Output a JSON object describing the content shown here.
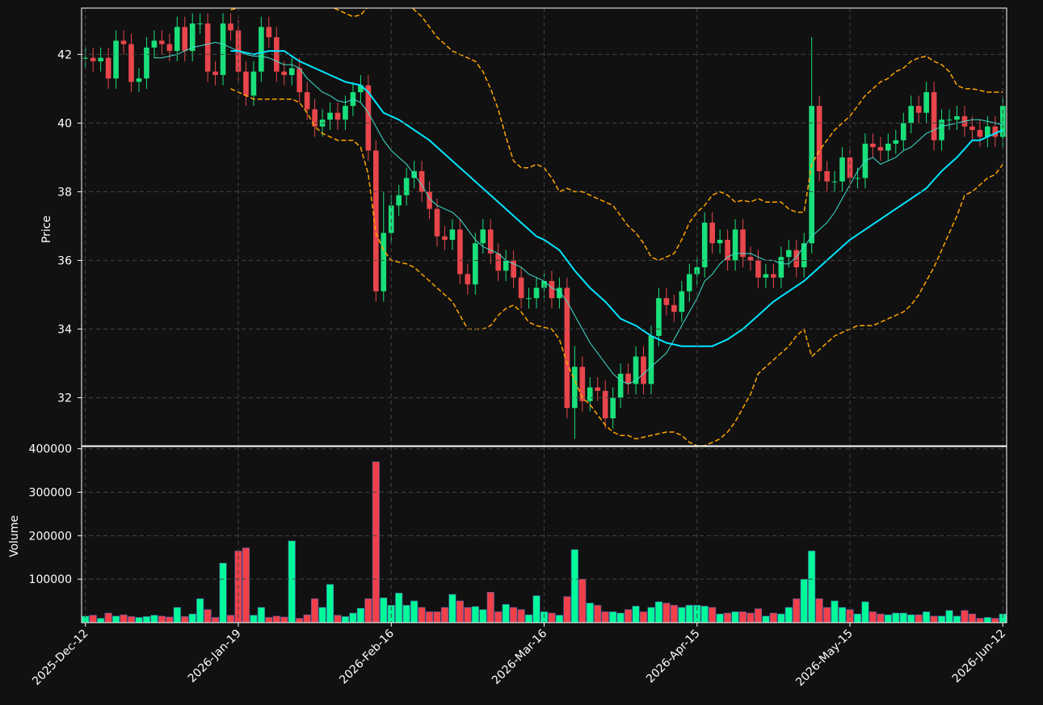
{
  "chart_data": {
    "type": "candlestick",
    "ylabel": "Price",
    "y2label": "Volume",
    "categories": [
      "2025-Dec-12",
      null,
      null,
      null,
      null,
      null,
      null,
      null,
      null,
      null,
      null,
      null,
      null,
      null,
      null,
      null,
      null,
      null,
      null,
      null,
      "2026-Jan-19",
      null,
      null,
      null,
      null,
      null,
      null,
      null,
      null,
      null,
      null,
      null,
      null,
      null,
      null,
      null,
      null,
      null,
      null,
      null,
      "2026-Feb-16",
      null,
      null,
      null,
      null,
      null,
      null,
      null,
      null,
      null,
      null,
      null,
      null,
      null,
      null,
      null,
      null,
      null,
      null,
      null,
      "2026-Mar-16",
      null,
      null,
      null,
      null,
      null,
      null,
      null,
      null,
      null,
      null,
      null,
      null,
      null,
      null,
      null,
      null,
      null,
      null,
      null,
      "2026-Apr-15",
      null,
      null,
      null,
      null,
      null,
      null,
      null,
      null,
      null,
      null,
      null,
      null,
      null,
      null,
      null,
      null,
      null,
      null,
      null,
      "2026-May-15",
      null,
      null,
      null,
      null,
      null,
      null,
      null,
      null,
      null,
      null,
      null,
      null,
      null,
      null,
      null,
      null,
      null,
      null,
      null,
      "2026-Jun-12"
    ],
    "open": [
      41.9,
      41.9,
      41.8,
      41.9,
      41.3,
      42.4,
      42.3,
      41.2,
      41.3,
      42.2,
      42.4,
      42.3,
      42.1,
      42.8,
      42.1,
      42.9,
      42.9,
      41.5,
      41.4,
      42.9,
      42.7,
      41.5,
      40.8,
      41.5,
      42.8,
      42.5,
      41.5,
      41.4,
      41.6,
      40.9,
      40.4,
      39.9,
      40.1,
      40.3,
      40.1,
      40.5,
      40.9,
      41.1,
      39.2,
      35.1,
      36.8,
      37.6,
      37.9,
      38.4,
      38.6,
      38.0,
      37.5,
      36.7,
      36.6,
      36.9,
      35.6,
      35.3,
      36.5,
      36.9,
      36.2,
      35.7,
      36.0,
      35.5,
      34.9,
      34.9,
      35.2,
      35.4,
      34.9,
      35.2,
      31.7,
      32.9,
      31.9,
      32.3,
      32.2,
      31.4,
      32.0,
      32.7,
      32.4,
      33.2,
      32.4,
      33.8,
      34.9,
      34.7,
      34.5,
      35.1,
      35.6,
      35.8,
      37.1,
      36.5,
      36.6,
      36.0,
      36.9,
      36.1,
      36.0,
      35.5,
      35.6,
      35.5,
      36.1,
      36.3,
      35.8,
      36.5,
      40.5,
      38.6,
      38.3,
      38.3,
      39.0,
      38.4,
      38.4,
      39.4,
      39.3,
      39.2,
      39.4,
      39.5,
      40.0,
      40.5,
      40.3,
      40.9,
      39.5,
      40.1,
      40.1,
      40.2,
      39.9,
      39.8,
      39.6,
      39.9,
      39.6
    ],
    "high": [
      42.2,
      42.2,
      42.2,
      42.2,
      42.7,
      42.7,
      42.6,
      41.6,
      42.5,
      42.7,
      42.7,
      42.6,
      43.1,
      43.1,
      43.2,
      43.2,
      43.2,
      41.8,
      43.2,
      43.2,
      43.0,
      41.8,
      41.8,
      43.1,
      43.1,
      42.8,
      41.8,
      41.9,
      41.9,
      41.2,
      40.7,
      40.4,
      40.6,
      40.6,
      40.8,
      41.2,
      41.4,
      41.4,
      39.5,
      38.0,
      37.9,
      38.2,
      38.7,
      38.9,
      38.9,
      38.3,
      37.8,
      37.0,
      37.2,
      37.2,
      35.9,
      36.8,
      37.2,
      37.2,
      36.5,
      36.3,
      36.3,
      35.8,
      35.2,
      35.5,
      35.7,
      35.7,
      35.5,
      35.5,
      33.5,
      33.2,
      32.6,
      32.6,
      32.5,
      32.3,
      33.0,
      33.0,
      33.5,
      33.5,
      34.1,
      35.2,
      35.2,
      35.0,
      35.4,
      35.9,
      36.1,
      37.4,
      37.4,
      36.9,
      36.9,
      37.2,
      37.2,
      36.4,
      36.3,
      35.9,
      35.9,
      36.4,
      36.6,
      36.6,
      36.8,
      42.5,
      40.8,
      38.9,
      38.6,
      39.3,
      39.3,
      38.7,
      39.7,
      39.7,
      39.6,
      39.7,
      39.8,
      40.3,
      40.8,
      40.8,
      41.2,
      41.2,
      40.4,
      40.4,
      40.5,
      40.5,
      40.2,
      40.1,
      40.2,
      40.2,
      40.8
    ],
    "low": [
      41.6,
      41.5,
      41.5,
      41.0,
      41.0,
      42.0,
      40.9,
      40.9,
      41.0,
      41.9,
      42.0,
      41.8,
      41.8,
      41.8,
      41.8,
      42.6,
      41.2,
      41.1,
      41.1,
      42.4,
      41.2,
      40.5,
      40.5,
      41.2,
      42.2,
      41.2,
      41.1,
      41.1,
      40.6,
      40.1,
      39.6,
      39.6,
      39.8,
      39.8,
      39.8,
      40.2,
      40.6,
      38.9,
      34.8,
      34.8,
      36.5,
      37.3,
      37.6,
      38.1,
      37.7,
      37.2,
      36.4,
      36.3,
      36.3,
      35.3,
      35.0,
      35.0,
      36.2,
      35.9,
      35.4,
      35.4,
      35.2,
      34.6,
      34.6,
      34.6,
      34.9,
      34.6,
      34.6,
      31.4,
      30.8,
      31.6,
      31.6,
      31.9,
      31.1,
      31.1,
      31.7,
      32.1,
      32.1,
      32.1,
      32.1,
      33.5,
      34.4,
      34.2,
      34.2,
      34.8,
      35.3,
      35.5,
      36.2,
      36.2,
      35.7,
      35.7,
      35.8,
      35.7,
      35.2,
      35.2,
      35.2,
      35.2,
      35.8,
      35.5,
      35.5,
      36.2,
      38.3,
      38.0,
      38.0,
      38.0,
      38.1,
      38.1,
      38.1,
      39.0,
      38.9,
      38.9,
      39.1,
      39.2,
      39.7,
      40.0,
      40.0,
      39.2,
      39.2,
      39.8,
      39.8,
      39.6,
      39.5,
      39.3,
      39.3,
      39.3,
      39.3
    ],
    "close": [
      41.9,
      41.8,
      41.9,
      41.3,
      42.4,
      42.3,
      41.2,
      41.3,
      42.2,
      42.4,
      42.3,
      42.1,
      42.8,
      42.1,
      42.9,
      42.9,
      41.5,
      41.4,
      42.9,
      42.7,
      41.5,
      40.8,
      41.5,
      42.8,
      42.5,
      41.5,
      41.4,
      41.6,
      40.9,
      40.4,
      39.9,
      40.1,
      40.3,
      40.1,
      40.5,
      40.9,
      41.1,
      39.2,
      35.1,
      36.8,
      37.6,
      37.9,
      38.4,
      38.6,
      38.0,
      37.5,
      36.7,
      36.6,
      36.9,
      35.6,
      35.3,
      36.5,
      36.9,
      36.2,
      35.7,
      36.0,
      35.5,
      34.9,
      34.9,
      35.2,
      35.4,
      34.9,
      35.2,
      31.7,
      32.9,
      31.9,
      32.3,
      32.2,
      31.4,
      32.0,
      32.7,
      32.4,
      33.2,
      32.4,
      33.8,
      34.9,
      34.7,
      34.5,
      35.1,
      35.6,
      35.8,
      37.1,
      36.5,
      36.6,
      36.0,
      36.9,
      36.1,
      36.0,
      35.5,
      35.6,
      35.5,
      36.1,
      36.3,
      35.8,
      36.5,
      40.5,
      38.6,
      38.3,
      38.3,
      39.0,
      38.4,
      38.4,
      39.4,
      39.3,
      39.2,
      39.4,
      39.5,
      40.0,
      40.5,
      40.3,
      40.9,
      39.5,
      40.1,
      40.1,
      40.2,
      39.9,
      39.8,
      39.6,
      39.9,
      39.6,
      40.5
    ],
    "volume": [
      15000,
      17000,
      10000,
      22000,
      15000,
      18000,
      14000,
      12000,
      14000,
      17000,
      15000,
      13000,
      35000,
      14000,
      20000,
      55000,
      30000,
      12000,
      137000,
      17000,
      165000,
      172000,
      17000,
      35000,
      12000,
      15000,
      13000,
      188000,
      10000,
      18000,
      55000,
      35000,
      88000,
      17000,
      14000,
      22000,
      33000,
      55000,
      370000,
      57000,
      40000,
      68000,
      40000,
      50000,
      35000,
      25000,
      25000,
      35000,
      65000,
      50000,
      35000,
      37000,
      30000,
      70000,
      25000,
      42000,
      35000,
      30000,
      18000,
      62000,
      25000,
      22000,
      17000,
      60000,
      168000,
      100000,
      45000,
      40000,
      25000,
      25000,
      22000,
      30000,
      38000,
      25000,
      35000,
      48000,
      45000,
      40000,
      35000,
      40000,
      40000,
      38000,
      35000,
      20000,
      22000,
      25000,
      25000,
      22000,
      32000,
      15000,
      22000,
      20000,
      35000,
      55000,
      100000,
      165000,
      55000,
      35000,
      50000,
      35000,
      30000,
      20000,
      48000,
      25000,
      20000,
      18000,
      22000,
      22000,
      18000,
      18000,
      25000,
      15000,
      15000,
      28000,
      15000,
      28000,
      20000,
      10000,
      12000,
      10000,
      20000
    ],
    "up_color": "#19e07a",
    "down_color": "#e8464c",
    "volume_up_color": "#00fa9a",
    "volume_down_color": "#f0404a",
    "overlays": [
      {
        "color": "#40e0d0",
        "linewidth": 1,
        "linestyle": "solid",
        "values": [
          null,
          null,
          null,
          null,
          null,
          null,
          null,
          null,
          null,
          41.9,
          41.9,
          41.95,
          42.0,
          42.1,
          42.2,
          42.25,
          42.3,
          42.35,
          42.3,
          42.2,
          42.1,
          42.0,
          41.95,
          41.95,
          41.9,
          41.8,
          41.7,
          41.7,
          41.6,
          41.3,
          41.1,
          40.9,
          40.8,
          40.65,
          40.6,
          40.7,
          40.6,
          40.3,
          39.9,
          39.5,
          39.2,
          39.0,
          38.8,
          38.5,
          38.2,
          37.8,
          37.6,
          37.5,
          37.4,
          37.2,
          36.9,
          36.6,
          36.4,
          36.3,
          36.2,
          36.0,
          35.9,
          35.8,
          35.6,
          35.5,
          35.4,
          35.2,
          35.1,
          34.8,
          34.4,
          34.0,
          33.6,
          33.3,
          33.0,
          32.7,
          32.5,
          32.4,
          32.5,
          32.7,
          32.9,
          33.1,
          33.3,
          33.7,
          34.1,
          34.5,
          34.9,
          35.4,
          35.6,
          35.9,
          36.1,
          36.2,
          36.2,
          36.2,
          36.1,
          36.0,
          36.0,
          35.9,
          35.9,
          36.1,
          36.4,
          36.7,
          36.9,
          37.1,
          37.4,
          37.8,
          38.2,
          38.6,
          38.9,
          39.0,
          38.8,
          38.9,
          39.0,
          39.2,
          39.3,
          39.5,
          39.7,
          39.8,
          39.9,
          39.95,
          40.0,
          40.05,
          40.1,
          40.1,
          40.05,
          40.0,
          39.95
        ]
      },
      {
        "color": "#00e5ff",
        "linewidth": 2,
        "linestyle": "solid",
        "values": [
          null,
          null,
          null,
          null,
          null,
          null,
          null,
          null,
          null,
          null,
          null,
          null,
          null,
          null,
          null,
          null,
          null,
          null,
          null,
          42.1,
          42.1,
          42.05,
          42.0,
          42.05,
          42.1,
          42.1,
          42.1,
          41.95,
          41.8,
          41.7,
          41.6,
          41.5,
          41.4,
          41.3,
          41.2,
          41.15,
          41.1,
          40.9,
          40.6,
          40.3,
          40.2,
          40.1,
          39.95,
          39.8,
          39.65,
          39.5,
          39.3,
          39.1,
          38.9,
          38.7,
          38.5,
          38.3,
          38.1,
          37.9,
          37.7,
          37.5,
          37.3,
          37.1,
          36.9,
          36.7,
          36.6,
          36.45,
          36.3,
          36.0,
          35.7,
          35.45,
          35.2,
          35.0,
          34.8,
          34.55,
          34.3,
          34.2,
          34.1,
          33.95,
          33.8,
          33.7,
          33.6,
          33.55,
          33.5,
          33.5,
          33.5,
          33.5,
          33.5,
          33.6,
          33.7,
          33.85,
          34.0,
          34.2,
          34.4,
          34.6,
          34.8,
          34.95,
          35.1,
          35.25,
          35.4,
          35.6,
          35.8,
          36.0,
          36.2,
          36.4,
          36.6,
          36.75,
          36.9,
          37.05,
          37.2,
          37.35,
          37.5,
          37.65,
          37.8,
          37.95,
          38.1,
          38.35,
          38.6,
          38.8,
          39.0,
          39.25,
          39.5,
          39.5,
          39.6,
          39.7,
          39.8
        ]
      },
      {
        "color": "#ffa500",
        "linewidth": 1.5,
        "linestyle": "dashed",
        "values": [
          null,
          null,
          null,
          null,
          null,
          null,
          null,
          null,
          null,
          null,
          null,
          null,
          null,
          null,
          null,
          null,
          null,
          null,
          null,
          43.3,
          43.35,
          43.4,
          43.5,
          43.6,
          43.6,
          43.6,
          43.6,
          43.7,
          43.7,
          43.6,
          43.5,
          43.5,
          43.4,
          43.3,
          43.2,
          43.1,
          43.15,
          43.4,
          43.8,
          44.3,
          44.5,
          44.3,
          43.6,
          43.3,
          43.1,
          42.8,
          42.5,
          42.3,
          42.1,
          42.0,
          41.9,
          41.8,
          41.5,
          41.0,
          40.4,
          39.6,
          38.9,
          38.7,
          38.7,
          38.8,
          38.7,
          38.4,
          38.0,
          38.1,
          38.0,
          38.0,
          37.9,
          37.8,
          37.7,
          37.6,
          37.3,
          37.0,
          36.8,
          36.5,
          36.1,
          36.0,
          36.1,
          36.2,
          36.6,
          37.1,
          37.4,
          37.6,
          37.9,
          38.0,
          37.9,
          37.7,
          37.75,
          37.7,
          37.8,
          37.7,
          37.7,
          37.7,
          37.5,
          37.4,
          37.4,
          38.8,
          39.2,
          39.5,
          39.8,
          40.0,
          40.2,
          40.5,
          40.8,
          41.0,
          41.2,
          41.3,
          41.5,
          41.6,
          41.8,
          41.9,
          41.95,
          41.8,
          41.7,
          41.5,
          41.1,
          41.0,
          41.0,
          40.95,
          40.9,
          40.9,
          40.9
        ]
      },
      {
        "color": "#ffa500",
        "linewidth": 1.5,
        "linestyle": "dashed",
        "values": [
          null,
          null,
          null,
          null,
          null,
          null,
          null,
          null,
          null,
          null,
          null,
          null,
          null,
          null,
          null,
          null,
          null,
          null,
          null,
          41.0,
          40.9,
          40.8,
          40.7,
          40.7,
          40.7,
          40.7,
          40.7,
          40.7,
          40.6,
          40.3,
          39.9,
          39.7,
          39.6,
          39.5,
          39.5,
          39.5,
          39.3,
          38.5,
          36.8,
          36.3,
          36.0,
          35.95,
          35.9,
          35.8,
          35.6,
          35.4,
          35.2,
          35.0,
          34.8,
          34.4,
          34.0,
          34.0,
          34.0,
          34.1,
          34.4,
          34.6,
          34.7,
          34.5,
          34.2,
          34.1,
          34.05,
          34.0,
          33.7,
          33.0,
          32.5,
          32.0,
          31.8,
          31.5,
          31.2,
          31.0,
          30.9,
          30.9,
          30.8,
          30.85,
          30.9,
          30.95,
          31.0,
          31.0,
          30.9,
          30.7,
          30.6,
          30.6,
          30.7,
          30.8,
          31.0,
          31.3,
          31.7,
          32.1,
          32.7,
          32.9,
          33.1,
          33.3,
          33.5,
          33.8,
          34.0,
          33.2,
          33.4,
          33.6,
          33.8,
          33.9,
          34.0,
          34.1,
          34.1,
          34.1,
          34.2,
          34.3,
          34.4,
          34.5,
          34.7,
          35.0,
          35.4,
          35.8,
          36.3,
          36.8,
          37.3,
          37.9,
          38.0,
          38.2,
          38.4,
          38.5,
          38.8
        ]
      }
    ],
    "ylim": [
      30.6,
      43.35
    ],
    "yticks": [
      32,
      34,
      36,
      38,
      40,
      42
    ],
    "y2lim": [
      0,
      405000
    ],
    "y2ticks": [
      100000,
      200000,
      300000,
      400000
    ],
    "grid": true
  }
}
